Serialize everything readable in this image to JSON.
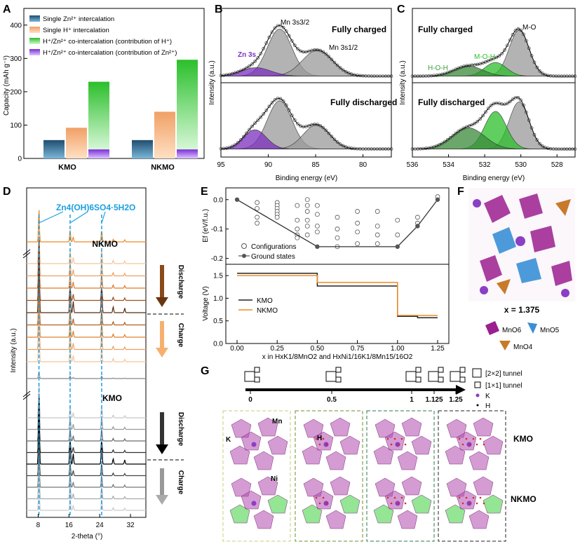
{
  "panels": {
    "A": "A",
    "B": "B",
    "C": "C",
    "D": "D",
    "E": "E",
    "F": "F",
    "G": "G"
  },
  "colors": {
    "zn_dark": "#1f4e6f",
    "zn_light": "#7bb6d8",
    "h_dark": "#e8742a",
    "h_light": "#ffd0a8",
    "coH_dark": "#2bbf2b",
    "coH_light": "#b8f0b8",
    "coZn_dark": "#7a2ed6",
    "coZn_light": "#d9b8ff",
    "fit_gray": "#9a9a9a",
    "zn3s_purple": "#7b2fbe",
    "green_fit": "#3aa23a",
    "d_cyan": "#1aa0e0",
    "kmo_line": "#222222",
    "nkmo_line": "#f08a24",
    "mno6": "#9b1f8f",
    "mno5": "#3a8fd6",
    "mno4": "#c77a2a",
    "k_ion": "#8a3fc4"
  },
  "chart_data": [
    {
      "panel": "A",
      "type": "bar",
      "ylabel": "Capacity (mAh g⁻¹)",
      "ylim": [
        0,
        450
      ],
      "yticks": [
        0,
        100,
        200,
        300,
        400
      ],
      "categories": [
        "KMO",
        "NKMO"
      ],
      "series": [
        {
          "name": "Single Zn²⁺ intercalation",
          "values": [
            55,
            55
          ]
        },
        {
          "name": "Single H⁺ intercalation",
          "values": [
            92,
            140
          ]
        },
        {
          "name": "H⁺/Zn²⁺ co-intercalation (contribution of H⁺)",
          "values": [
            230,
            296
          ]
        },
        {
          "name": "H⁺/Zn²⁺ co-intercalation (contribution of Zn²⁺)",
          "values": [
            27,
            27
          ]
        }
      ]
    },
    {
      "panel": "B",
      "type": "line",
      "xlabel": "Binding energy (eV)",
      "ylabel": "Intensity (a.u.)",
      "xlim": [
        95,
        77
      ],
      "xticks": [
        95,
        90,
        85,
        80
      ],
      "subplots": [
        {
          "title": "Fully charged",
          "annotations": [
            "Zn 3s",
            "Mn 3s3/2",
            "Mn 3s1/2"
          ],
          "peaks": [
            {
              "center": 88.8,
              "height": 1.0,
              "width": 1.3
            },
            {
              "center": 84.8,
              "height": 0.55,
              "width": 1.6
            },
            {
              "center": 91.3,
              "height": 0.18,
              "width": 1.6
            }
          ]
        },
        {
          "title": "Fully discharged",
          "peaks": [
            {
              "center": 88.8,
              "height": 1.0,
              "width": 1.3
            },
            {
              "center": 84.9,
              "height": 0.5,
              "width": 1.4
            },
            {
              "center": 91.4,
              "height": 0.4,
              "width": 1.2
            }
          ]
        }
      ]
    },
    {
      "panel": "C",
      "type": "line",
      "xlabel": "Binding energy (eV)",
      "ylabel": "Intensity (a.u.)",
      "xlim": [
        536,
        527
      ],
      "xticks": [
        536,
        534,
        532,
        530,
        528
      ],
      "subplots": [
        {
          "title": "Fully charged",
          "annotations": [
            "M-O",
            "M-O-H",
            "H-O-H"
          ],
          "peaks": [
            {
              "center": 530.1,
              "height": 1.0,
              "width": 0.55
            },
            {
              "center": 531.4,
              "height": 0.3,
              "width": 0.6
            },
            {
              "center": 532.9,
              "height": 0.22,
              "width": 0.8
            }
          ]
        },
        {
          "title": "Fully discharged",
          "peaks": [
            {
              "center": 530.1,
              "height": 1.0,
              "width": 0.55
            },
            {
              "center": 531.4,
              "height": 0.8,
              "width": 0.6
            },
            {
              "center": 532.9,
              "height": 0.45,
              "width": 0.9
            }
          ]
        }
      ]
    },
    {
      "panel": "D",
      "type": "line",
      "xlabel": "2-theta (°)",
      "ylabel": "Intensity (a.u.)",
      "xlim": [
        5,
        36
      ],
      "xticks": [
        8,
        16,
        24,
        32
      ],
      "annotation": "Zn4(OH)6SO4·5H2O",
      "reference_lines": [
        8.2,
        16.3,
        24.5
      ],
      "groups": [
        "NKMO",
        "KMO"
      ],
      "arrow_labels": [
        "Discharge",
        "Charge"
      ]
    },
    {
      "panel": "E",
      "type": "scatter",
      "top": {
        "ylabel": "Ef (eV/f.u.)",
        "ylim": [
          -0.22,
          0.04
        ],
        "yticks": [
          0.0,
          -0.1,
          -0.2
        ],
        "legend": [
          "Configurations",
          "Ground states"
        ],
        "ground_states": [
          [
            0,
            0
          ],
          [
            0.5,
            -0.16
          ],
          [
            1.0,
            -0.16
          ],
          [
            1.125,
            -0.09
          ],
          [
            1.25,
            0
          ]
        ],
        "configurations": [
          [
            0.125,
            -0.01
          ],
          [
            0.125,
            -0.03
          ],
          [
            0.125,
            -0.06
          ],
          [
            0.125,
            -0.08
          ],
          [
            0.25,
            -0.01
          ],
          [
            0.25,
            -0.02
          ],
          [
            0.25,
            -0.03
          ],
          [
            0.25,
            -0.04
          ],
          [
            0.25,
            -0.05
          ],
          [
            0.25,
            -0.06
          ],
          [
            0.375,
            -0.02
          ],
          [
            0.375,
            -0.07
          ],
          [
            0.375,
            -0.1
          ],
          [
            0.375,
            -0.12
          ],
          [
            0.375,
            -0.13
          ],
          [
            0.438,
            0.0
          ],
          [
            0.438,
            -0.02
          ],
          [
            0.438,
            -0.04
          ],
          [
            0.438,
            -0.07
          ],
          [
            0.438,
            -0.09
          ],
          [
            0.438,
            -0.12
          ],
          [
            0.5,
            -0.02
          ],
          [
            0.5,
            -0.05
          ],
          [
            0.5,
            -0.09
          ],
          [
            0.5,
            -0.11
          ],
          [
            0.625,
            -0.06
          ],
          [
            0.625,
            -0.1
          ],
          [
            0.625,
            -0.13
          ],
          [
            0.625,
            -0.16
          ],
          [
            0.75,
            -0.04
          ],
          [
            0.75,
            -0.08
          ],
          [
            0.75,
            -0.11
          ],
          [
            0.75,
            -0.15
          ],
          [
            0.875,
            -0.04
          ],
          [
            0.875,
            -0.09
          ],
          [
            0.875,
            -0.12
          ],
          [
            0.875,
            -0.15
          ],
          [
            1.0,
            -0.07
          ],
          [
            1.0,
            -0.12
          ],
          [
            1.125,
            -0.06
          ],
          [
            1.125,
            -0.08
          ],
          [
            1.25,
            0.01
          ]
        ]
      },
      "bottom": {
        "ylabel": "Voltage (V)",
        "ylim": [
          0,
          1.75
        ],
        "yticks": [
          0.0,
          0.5,
          1.0,
          1.5
        ],
        "xlim": [
          -0.07,
          1.32
        ],
        "xticks": [
          0.0,
          0.25,
          0.5,
          0.75,
          1.0,
          1.25
        ],
        "xlabel": "x in HxK1/8MnO2 and HxNi1/16K1/8Mn15/16O2",
        "series": [
          {
            "name": "KMO",
            "steps": [
              [
                0,
                0.5,
                1.55
              ],
              [
                0.5,
                1.0,
                1.27
              ],
              [
                1.0,
                1.125,
                0.6
              ],
              [
                1.125,
                1.25,
                0.57
              ]
            ]
          },
          {
            "name": "NKMO",
            "steps": [
              [
                0,
                0.5,
                1.5
              ],
              [
                0.5,
                1.0,
                1.35
              ],
              [
                1.0,
                1.25,
                0.62
              ]
            ]
          }
        ]
      }
    }
  ],
  "panelF": {
    "x_label": "x = 1.375",
    "legend": [
      "MnO6",
      "MnO5",
      "MnO4"
    ]
  },
  "panelG": {
    "axis_ticks": [
      "0",
      "0.5",
      "1",
      "1.125",
      "1.25"
    ],
    "legend": [
      "[2×2] tunnel",
      "[1×1] tunnel",
      "K",
      "H"
    ],
    "row_labels": [
      "KMO",
      "NKMO"
    ],
    "atom_labels": [
      "K",
      "Mn",
      "H",
      "Ni"
    ]
  }
}
